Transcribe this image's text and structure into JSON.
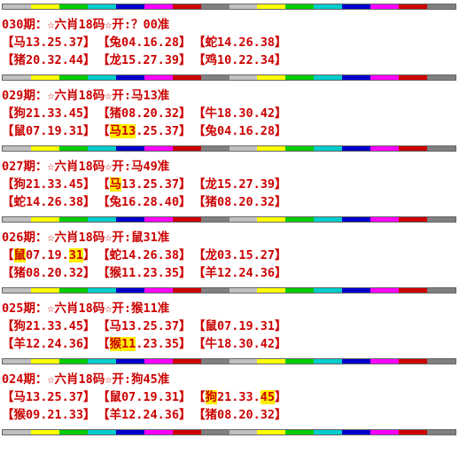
{
  "bar_colors": [
    "#c0c0c0",
    "#ffff00",
    "#00cc00",
    "#00cccc",
    "#0000cc",
    "#ff00ff",
    "#cc0000",
    "#808080",
    "#c0c0c0",
    "#ffff00",
    "#00cc00",
    "#00cccc",
    "#0000cc",
    "#ff00ff",
    "#cc0000",
    "#808080"
  ],
  "highlight_color": "#ffee00",
  "text_color": "#cc0000",
  "sections": [
    {
      "title": "030期：☆六肖18码☆开:？00准",
      "rows": [
        [
          {
            "parts": [
              {
                "t": "【马13.25.37】"
              }
            ]
          },
          {
            "parts": [
              {
                "t": "【兔04.16.28】"
              }
            ]
          },
          {
            "parts": [
              {
                "t": "【蛇14.26.38】"
              }
            ]
          }
        ],
        [
          {
            "parts": [
              {
                "t": "【猪20.32.44】"
              }
            ]
          },
          {
            "parts": [
              {
                "t": "【龙15.27.39】"
              }
            ]
          },
          {
            "parts": [
              {
                "t": "【鸡10.22.34】"
              }
            ]
          }
        ]
      ]
    },
    {
      "title": "029期：☆六肖18码☆开:马13准",
      "rows": [
        [
          {
            "parts": [
              {
                "t": "【狗21.33.45】"
              }
            ]
          },
          {
            "parts": [
              {
                "t": "【猪08.20.32】"
              }
            ]
          },
          {
            "parts": [
              {
                "t": "【牛18.30.42】"
              }
            ]
          }
        ],
        [
          {
            "parts": [
              {
                "t": "【鼠07.19.31】"
              }
            ]
          },
          {
            "parts": [
              {
                "t": "【"
              },
              {
                "t": "马13",
                "hl": true
              },
              {
                "t": ".25.37】"
              }
            ]
          },
          {
            "parts": [
              {
                "t": "【兔04.16.28】"
              }
            ]
          }
        ]
      ]
    },
    {
      "title": "027期：☆六肖18码☆开:马49准",
      "rows": [
        [
          {
            "parts": [
              {
                "t": "【狗21.33.45】"
              }
            ]
          },
          {
            "parts": [
              {
                "t": "【"
              },
              {
                "t": "马",
                "hl": true
              },
              {
                "t": "13.25.37】"
              }
            ]
          },
          {
            "parts": [
              {
                "t": "【龙15.27.39】"
              }
            ]
          }
        ],
        [
          {
            "parts": [
              {
                "t": "【蛇14.26.38】"
              }
            ]
          },
          {
            "parts": [
              {
                "t": "【兔16.28.40】"
              }
            ]
          },
          {
            "parts": [
              {
                "t": "【猪08.20.32】"
              }
            ]
          }
        ]
      ]
    },
    {
      "title": "026期：☆六肖18码☆开:鼠31准",
      "rows": [
        [
          {
            "parts": [
              {
                "t": "【"
              },
              {
                "t": "鼠",
                "hl": true
              },
              {
                "t": "07.19."
              },
              {
                "t": "31",
                "hl": true
              },
              {
                "t": "】"
              }
            ]
          },
          {
            "parts": [
              {
                "t": "【蛇14.26.38】"
              }
            ]
          },
          {
            "parts": [
              {
                "t": "【龙03.15.27】"
              }
            ]
          }
        ],
        [
          {
            "parts": [
              {
                "t": "【猪08.20.32】"
              }
            ]
          },
          {
            "parts": [
              {
                "t": "【猴11.23.35】"
              }
            ]
          },
          {
            "parts": [
              {
                "t": "【羊12.24.36】"
              }
            ]
          }
        ]
      ]
    },
    {
      "title": "025期：☆六肖18码☆开:猴11准",
      "rows": [
        [
          {
            "parts": [
              {
                "t": "【狗21.33.45】"
              }
            ]
          },
          {
            "parts": [
              {
                "t": "【马13.25.37】"
              }
            ]
          },
          {
            "parts": [
              {
                "t": "【鼠07.19.31】"
              }
            ]
          }
        ],
        [
          {
            "parts": [
              {
                "t": "【羊12.24.36】"
              }
            ]
          },
          {
            "parts": [
              {
                "t": "【"
              },
              {
                "t": "猴11",
                "hl": true
              },
              {
                "t": ".23.35】"
              }
            ]
          },
          {
            "parts": [
              {
                "t": "【牛18.30.42】"
              }
            ]
          }
        ]
      ]
    },
    {
      "title": "024期：☆六肖18码☆开:狗45准",
      "rows": [
        [
          {
            "parts": [
              {
                "t": "【马13.25.37】"
              }
            ]
          },
          {
            "parts": [
              {
                "t": "【鼠07.19.31】"
              }
            ]
          },
          {
            "parts": [
              {
                "t": "【"
              },
              {
                "t": "狗",
                "hl": true
              },
              {
                "t": "21.33."
              },
              {
                "t": "45",
                "hl": true
              },
              {
                "t": "】"
              }
            ]
          }
        ],
        [
          {
            "parts": [
              {
                "t": "【猴09.21.33】"
              }
            ]
          },
          {
            "parts": [
              {
                "t": "【羊12.24.36】"
              }
            ]
          },
          {
            "parts": [
              {
                "t": "【猪08.20.32】"
              }
            ]
          }
        ]
      ]
    }
  ]
}
